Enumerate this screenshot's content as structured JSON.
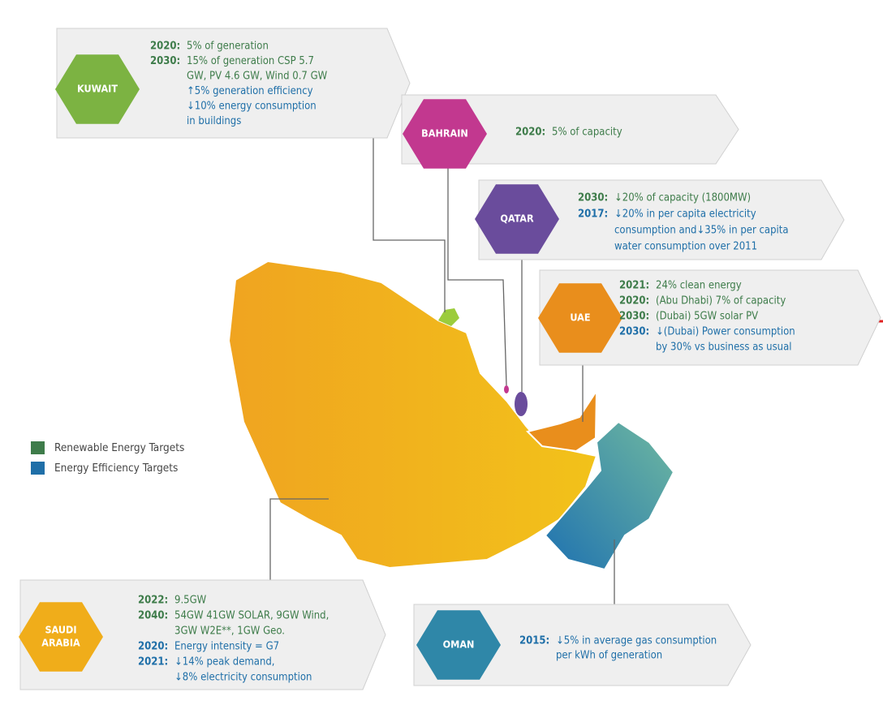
{
  "legend": [
    {
      "text": "Renewable Energy Targets",
      "color": "#3e7c4a"
    },
    {
      "text": "Energy Efficiency Targets",
      "color": "#1f6fa8"
    }
  ],
  "countries": [
    {
      "name": [
        "KUWAIT"
      ],
      "color": "#7cb342",
      "lines": [
        {
          "year": "2020:",
          "text": "5% of generation",
          "kind": "re"
        },
        {
          "year": "2030:",
          "text": "15% of generation CSP 5.7",
          "kind": "re"
        },
        {
          "text": "GW, PV 4.6 GW, Wind 0.7 GW",
          "kind": "re"
        },
        {
          "text": "↑5% generation efficiency",
          "kind": "ee"
        },
        {
          "text": "↓10% energy consumption",
          "kind": "ee"
        },
        {
          "text": "in buildings",
          "kind": "ee"
        }
      ]
    },
    {
      "name": [
        "BAHRAIN"
      ],
      "color": "#c2388f",
      "lines": [
        {
          "year": "2020:",
          "text": "5% of capacity",
          "kind": "re"
        }
      ]
    },
    {
      "name": [
        "QATAR"
      ],
      "color": "#6a4c9c",
      "lines": [
        {
          "year": "2030:",
          "text": "↓20% of capacity (1800MW)",
          "kind": "re"
        },
        {
          "year": "2017:",
          "text": "↓20% in per capita electricity",
          "kind": "ee"
        },
        {
          "text": "consumption and↓35% in per capita",
          "kind": "ee"
        },
        {
          "text": "water consumption over 2011",
          "kind": "ee"
        }
      ]
    },
    {
      "name": [
        "UAE"
      ],
      "color": "#e98e1c",
      "lines": [
        {
          "year": "2021:",
          "text": "24% clean energy",
          "kind": "re"
        },
        {
          "year": "2020:",
          "text": "(Abu Dhabi) 7% of capacity",
          "kind": "re"
        },
        {
          "year": "2030:",
          "text": "(Dubai) 5GW solar PV",
          "kind": "re"
        },
        {
          "year": "2030:",
          "text": "↓(Dubai) Power consumption",
          "kind": "ee"
        },
        {
          "text": "by 30% vs business as usual",
          "kind": "ee"
        }
      ]
    },
    {
      "name": [
        "SAUDI",
        "ARABIA"
      ],
      "color": "#f0ad1a",
      "lines": [
        {
          "year": "2022:",
          "text": "9.5GW",
          "kind": "re"
        },
        {
          "year": "2040:",
          "text": "54GW 41GW SOLAR, 9GW Wind,",
          "kind": "re"
        },
        {
          "text": "3GW W2E**, 1GW Geo.",
          "kind": "re"
        },
        {
          "year": "2020:",
          "text": "Energy intensity = G7",
          "kind": "ee"
        },
        {
          "year": "2021:",
          "text": "↓14% peak demand,",
          "kind": "ee"
        },
        {
          "text": "↓8% electricity consumption",
          "kind": "ee"
        }
      ]
    },
    {
      "name": [
        "OMAN"
      ],
      "color": "#2f87a8",
      "lines": [
        {
          "year": "2015:",
          "text": "↓5% in average gas consumption",
          "kind": "ee"
        },
        {
          "text": "per kWh of generation",
          "kind": "ee"
        }
      ]
    }
  ]
}
